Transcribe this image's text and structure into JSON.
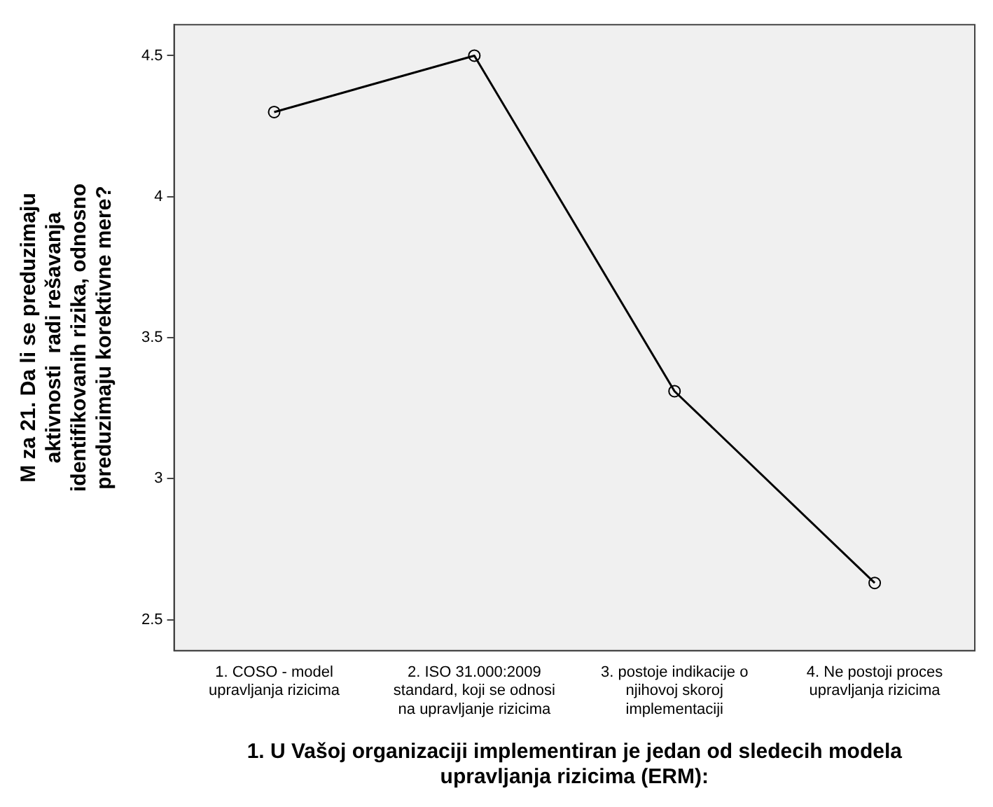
{
  "chart_data": {
    "type": "line",
    "xlabel": "1. U Vašoj organizaciji implementiran je jedan od sledecih modela upravljanja rizicima (ERM):",
    "ylabel": "M za 21. Da li se preduzimaju aktivnosti  radi rešavanja identifikovanih rizika, odnosno preduzimaju korektivne mere?",
    "categories": [
      "1. COSO - model upravljanja rizicima",
      "2. ISO 31.000:2009 standard, koji se odnosi na upravljanje rizicima",
      "3. postoje indikacije o njihovoj skoroj implementaciji",
      "4. Ne postoji proces upravljanja rizicima"
    ],
    "series": [
      {
        "color": "#000000",
        "values": [
          4.3,
          4.5,
          3.31,
          2.63
        ]
      }
    ],
    "ylim": [
      2.39,
      4.61
    ],
    "yticks": [
      2.5,
      3,
      3.5,
      4,
      4.5
    ],
    "grid": false,
    "legend": false,
    "marker": "circle",
    "line_style": "solid"
  }
}
